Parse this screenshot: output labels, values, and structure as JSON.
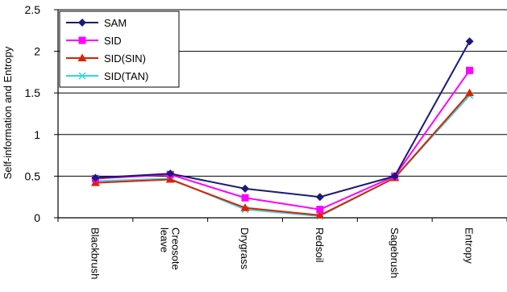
{
  "chart_data": {
    "type": "line",
    "title": "",
    "xlabel": "",
    "ylabel": "Self-information and Entropy",
    "categories": [
      "Blackbrush",
      "Creosote leave",
      "Drygrass",
      "Redsoil",
      "Sagebrush",
      "Entropy"
    ],
    "ylim": [
      0,
      2.5
    ],
    "yticks": [
      "0",
      "0.5",
      "1",
      "1.5",
      "2",
      "2.5"
    ],
    "grid": "horizontal",
    "legend_position": "top-left",
    "series": [
      {
        "name": "SAM",
        "color": "#1a1a7a",
        "marker": "diamond",
        "values": [
          0.48,
          0.53,
          0.35,
          0.25,
          0.5,
          2.12
        ]
      },
      {
        "name": "SID",
        "color": "#ff00ff",
        "marker": "square",
        "values": [
          0.47,
          0.52,
          0.24,
          0.1,
          0.5,
          1.77
        ]
      },
      {
        "name": "SID(SIN)",
        "color": "#dd2200",
        "marker": "triangle",
        "values": [
          0.42,
          0.46,
          0.12,
          0.03,
          0.48,
          1.5
        ]
      },
      {
        "name": "SID(TAN)",
        "color": "#33d6e6",
        "marker": "x",
        "values": [
          0.44,
          0.47,
          0.1,
          0.02,
          0.48,
          1.47
        ]
      }
    ]
  }
}
